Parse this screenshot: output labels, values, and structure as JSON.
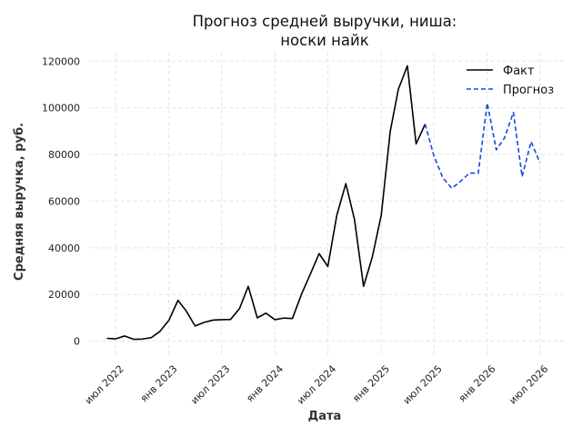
{
  "chart_data": {
    "type": "line",
    "title_lines": [
      "Прогноз средней выручки, ниша:",
      "носки найк"
    ],
    "xlabel": "Дата",
    "ylabel": "Средняя выручка, руб.",
    "ylim": [
      -6000,
      124000
    ],
    "y_ticks": [
      0,
      20000,
      40000,
      60000,
      80000,
      100000,
      120000
    ],
    "y_tick_labels": [
      "0",
      "20000",
      "40000",
      "60000",
      "80000",
      "100000",
      "120000"
    ],
    "x_ticks": [
      "2022-07-01",
      "2023-01-01",
      "2023-07-01",
      "2024-01-01",
      "2024-07-01",
      "2025-01-01",
      "2025-07-01",
      "2026-01-01",
      "2026-07-01"
    ],
    "x_tick_labels": [
      "июл 2022",
      "янв 2023",
      "июл 2023",
      "янв 2024",
      "июл 2024",
      "янв 2025",
      "июл 2025",
      "янв 2026",
      "июл 2026"
    ],
    "xlim": [
      "2022-04-01",
      "2026-10-01"
    ],
    "grid": true,
    "legend_position": "top-right",
    "series": [
      {
        "name": "Факт",
        "color": "#000000",
        "style": "solid",
        "points": [
          [
            "2022-06-01",
            1200
          ],
          [
            "2022-07-01",
            1000
          ],
          [
            "2022-08-01",
            2200
          ],
          [
            "2022-09-01",
            800
          ],
          [
            "2022-10-01",
            900
          ],
          [
            "2022-11-01",
            1500
          ],
          [
            "2022-12-01",
            4200
          ],
          [
            "2023-01-01",
            9000
          ],
          [
            "2023-02-01",
            17500
          ],
          [
            "2023-03-01",
            13000
          ],
          [
            "2023-04-01",
            6500
          ],
          [
            "2023-05-01",
            8000
          ],
          [
            "2023-06-01",
            9000
          ],
          [
            "2023-07-01",
            9200
          ],
          [
            "2023-08-01",
            9300
          ],
          [
            "2023-09-01",
            14000
          ],
          [
            "2023-10-01",
            23500
          ],
          [
            "2023-11-01",
            10000
          ],
          [
            "2023-12-01",
            12000
          ],
          [
            "2024-01-01",
            9200
          ],
          [
            "2024-02-01",
            9900
          ],
          [
            "2024-03-01",
            9700
          ],
          [
            "2024-04-01",
            20000
          ],
          [
            "2024-05-01",
            28500
          ],
          [
            "2024-06-01",
            37500
          ],
          [
            "2024-07-01",
            32000
          ],
          [
            "2024-08-01",
            54000
          ],
          [
            "2024-09-01",
            67500
          ],
          [
            "2024-10-01",
            52000
          ],
          [
            "2024-11-01",
            23500
          ],
          [
            "2024-12-01",
            36000
          ],
          [
            "2025-01-01",
            54000
          ],
          [
            "2025-02-01",
            90000
          ],
          [
            "2025-03-01",
            108000
          ],
          [
            "2025-04-01",
            118000
          ],
          [
            "2025-05-01",
            84500
          ],
          [
            "2025-06-01",
            93000
          ]
        ]
      },
      {
        "name": "Прогноз",
        "color": "#1448e0",
        "style": "dashed",
        "points": [
          [
            "2025-06-01",
            93000
          ],
          [
            "2025-07-01",
            79500
          ],
          [
            "2025-08-01",
            70000
          ],
          [
            "2025-09-01",
            65500
          ],
          [
            "2025-10-01",
            68500
          ],
          [
            "2025-11-01",
            72000
          ],
          [
            "2025-12-01",
            72000
          ],
          [
            "2026-01-01",
            102000
          ],
          [
            "2026-02-01",
            82000
          ],
          [
            "2026-03-01",
            87000
          ],
          [
            "2026-04-01",
            98000
          ],
          [
            "2026-05-01",
            70500
          ],
          [
            "2026-06-01",
            85500
          ],
          [
            "2026-07-01",
            76500
          ]
        ]
      }
    ]
  }
}
